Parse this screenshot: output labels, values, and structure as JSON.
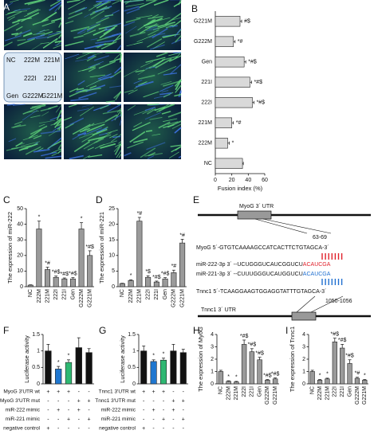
{
  "panel_a": {
    "label": "A",
    "legend": [
      "NC",
      "222M",
      "221M",
      "222I",
      "221I",
      "Gen",
      "G222M",
      "G221M"
    ]
  },
  "panel_e": {
    "label": "E",
    "myog_utr": "MyoG 3´ UTR",
    "myog_site": "63-69",
    "myog_seq": "MyoG  5´-GTGTCAAAAGCCATCACTTCTGTAGCA-3´",
    "mir222": {
      "prefix": "miR-222-3p 3´ --UCUGGGUCAUCGGUCU",
      "seed": "ACAUCGA"
    },
    "mir221": {
      "prefix": "miR-221-3p 3´ --CUUUGGGUCAUGGUCU",
      "seed": "ACAUCGA"
    },
    "tnnc1_seq": "Tnnc1  5´-TCAAGGAAGTGGAGGTATTTGTAGCA-3´",
    "tnnc1_site": "1050-1056",
    "tnnc1_utr": "Tnnc1 3´ UTR"
  },
  "chart_data": [
    {
      "type": "bar",
      "label": "B",
      "horizontal": true,
      "xlabel": "Fusion index (%)",
      "categories": [
        "G221M",
        "G222M",
        "Gen",
        "221I",
        "222I",
        "221M",
        "222M",
        "NC"
      ],
      "values": [
        30,
        22,
        35,
        42,
        45,
        20,
        15,
        33
      ],
      "errors": [
        2,
        2,
        2,
        2,
        2,
        2,
        2,
        1
      ],
      "annotations": [
        "#$",
        "*#",
        "*#$",
        "*#$",
        "*#$",
        "*#",
        "*",
        null
      ],
      "color": "#d9d9d9",
      "xlim": [
        0,
        60
      ],
      "xticks": [
        0,
        20,
        40,
        60
      ]
    },
    {
      "type": "bar",
      "label": "C",
      "ylabel": "The expression of miR-222",
      "categories": [
        "NC",
        "222M",
        "221M",
        "222I",
        "221I",
        "Gen",
        "G222M",
        "G221M"
      ],
      "values": [
        1,
        37,
        11,
        6,
        5,
        5,
        37,
        20
      ],
      "errors": [
        0.2,
        5,
        1.5,
        0.8,
        0.6,
        0.8,
        4,
        3
      ],
      "annotations": [
        null,
        "*",
        "*#",
        "*#$",
        "*#$",
        "*#$",
        "*",
        "*#$"
      ],
      "color": "#9a9a9a",
      "ylim": [
        0,
        50
      ],
      "yticks": [
        0,
        10,
        20,
        30,
        40,
        50
      ]
    },
    {
      "type": "bar",
      "label": "D",
      "ylabel": "The expression of miR-221",
      "categories": [
        "NC",
        "222M",
        "221M",
        "222I",
        "221I",
        "Gen",
        "G222M",
        "G221M"
      ],
      "values": [
        1,
        2,
        21,
        3,
        1.5,
        2.5,
        4.5,
        14
      ],
      "errors": [
        0.1,
        0.2,
        1.2,
        0.5,
        0.3,
        0.4,
        0.8,
        1.2
      ],
      "annotations": [
        null,
        "*",
        "*#",
        "*$",
        "*#$",
        "*#$",
        "*#",
        "*#"
      ],
      "color": "#9a9a9a",
      "ylim": [
        0,
        25
      ],
      "yticks": [
        0,
        5,
        10,
        15,
        20,
        25
      ]
    },
    {
      "type": "bar",
      "label": "F",
      "ylabel": "Luciferase activity",
      "values": [
        1.0,
        0.45,
        0.65,
        1.1,
        0.95
      ],
      "errors": [
        0.2,
        0.08,
        0.08,
        0.3,
        0.12
      ],
      "annotations": [
        null,
        "*",
        "*",
        null,
        null
      ],
      "colors": [
        "#111111",
        "#1f77d0",
        "#2eb872",
        "#111111",
        "#111111"
      ],
      "ylim": [
        0,
        1.5
      ],
      "yticks": [
        0,
        0.5,
        1,
        1.5
      ],
      "table": [
        {
          "label": "MyoG 3'UTR wt",
          "signs": [
            "+",
            "+",
            "+",
            "-",
            "-"
          ]
        },
        {
          "label": "MyoG 3'UTR mut",
          "signs": [
            "-",
            "-",
            "-",
            "+",
            "+"
          ]
        },
        {
          "label": "miR-222 mimic",
          "signs": [
            "-",
            "+",
            "-",
            "+",
            "-"
          ]
        },
        {
          "label": "miR-221 mimic",
          "signs": [
            "-",
            "-",
            "+",
            "-",
            "+"
          ]
        },
        {
          "label": "negative control",
          "signs": [
            "+",
            "-",
            "-",
            "-",
            "-"
          ]
        }
      ]
    },
    {
      "type": "bar",
      "label": "G",
      "ylabel": "Luciferase activity",
      "values": [
        1.0,
        0.68,
        0.72,
        1.0,
        0.95
      ],
      "errors": [
        0.15,
        0.05,
        0.06,
        0.2,
        0.1
      ],
      "annotations": [
        null,
        "*",
        "*",
        null,
        null
      ],
      "colors": [
        "#111111",
        "#1f77d0",
        "#2eb872",
        "#111111",
        "#111111"
      ],
      "ylim": [
        0,
        1.5
      ],
      "yticks": [
        0,
        0.5,
        1,
        1.5
      ],
      "table": [
        {
          "label": "Tnnc1 3'UTR wt",
          "signs": [
            "+",
            "+",
            "+",
            "-",
            "-"
          ]
        },
        {
          "label": "Tnnc1 3'UTR mut",
          "signs": [
            "-",
            "-",
            "-",
            "+",
            "+"
          ]
        },
        {
          "label": "miR-222 mimic",
          "signs": [
            "-",
            "+",
            "-",
            "+",
            "-"
          ]
        },
        {
          "label": "miR-221 mimic",
          "signs": [
            "-",
            "-",
            "+",
            "-",
            "+"
          ]
        },
        {
          "label": "negative control",
          "signs": [
            "+",
            "-",
            "-",
            "-",
            "-"
          ]
        }
      ]
    },
    {
      "type": "bar",
      "label": "H",
      "ylabel": "The expression of MyoG",
      "categories": [
        "NC",
        "222M",
        "221M",
        "222I",
        "221I",
        "Gen",
        "G222M",
        "G221M"
      ],
      "values": [
        1,
        0.2,
        0.15,
        3.2,
        2.6,
        1.95,
        0.3,
        0.4
      ],
      "errors": [
        0.1,
        0.05,
        0.05,
        0.35,
        0.25,
        0.2,
        0.05,
        0.08
      ],
      "annotations": [
        null,
        "*",
        "*",
        "*#$",
        "*#$",
        "*#$",
        "*#$",
        "*#$"
      ],
      "color": "#9a9a9a",
      "ylim": [
        0,
        4
      ],
      "yticks": [
        0,
        1,
        2,
        3,
        4
      ]
    },
    {
      "type": "bar",
      "label": "I",
      "ylabel": "The expression of Tnnc1",
      "categories": [
        "NC",
        "222M",
        "221M",
        "222I",
        "221I",
        "Gen",
        "G222M",
        "G221M"
      ],
      "values": [
        1,
        0.3,
        0.4,
        3.4,
        2.9,
        1.65,
        0.45,
        0.3
      ],
      "errors": [
        0.1,
        0.05,
        0.06,
        0.3,
        0.3,
        0.3,
        0.08,
        0.05
      ],
      "annotations": [
        null,
        "*",
        "*",
        "*#$",
        "*#$",
        "*#$",
        "*#",
        "*"
      ],
      "color": "#9a9a9a",
      "ylim": [
        0,
        4
      ],
      "yticks": [
        0,
        1,
        2,
        3,
        4
      ]
    }
  ]
}
